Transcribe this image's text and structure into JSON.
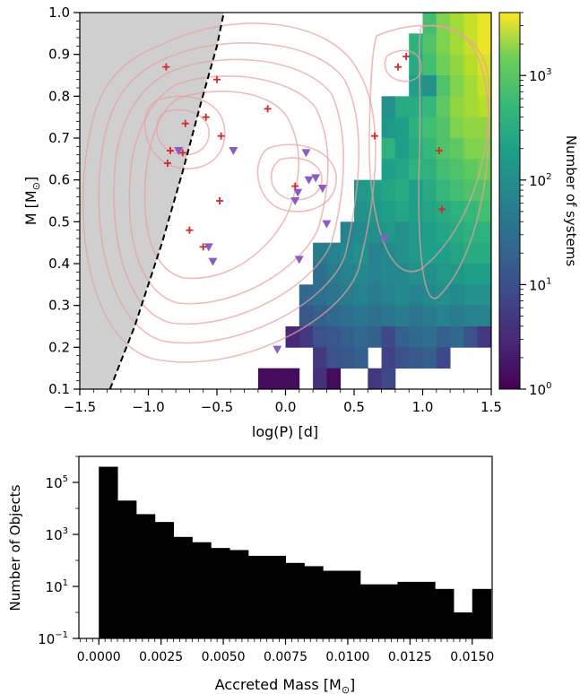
{
  "chart_data": [
    {
      "type": "heatmap",
      "xlabel": "log(P) [d]",
      "ylabel": "M [M",
      "ylabel_sub": "⊙",
      "ylabel_close": "]",
      "xlim": [
        -1.5,
        1.5
      ],
      "ylim": [
        0.1,
        1.0
      ],
      "xticks": [
        -1.5,
        -1.0,
        -0.5,
        0.0,
        0.5,
        1.0,
        1.5
      ],
      "xtick_labels": [
        "−1.5",
        "−1.0",
        "−0.5",
        "0.0",
        "0.5",
        "1.0",
        "1.5"
      ],
      "yticks": [
        0.1,
        0.2,
        0.3,
        0.4,
        0.5,
        0.6,
        0.7,
        0.8,
        0.9,
        1.0
      ],
      "ytick_labels": [
        "0.1",
        "0.2",
        "0.3",
        "0.4",
        "0.5",
        "0.6",
        "0.7",
        "0.8",
        "0.9",
        "1.0"
      ],
      "colorbar": {
        "label": "Number of systems",
        "scale": "log",
        "range": [
          1,
          4000
        ],
        "tick_values": [
          1,
          10,
          100,
          1000
        ],
        "tick_base": "10",
        "tick_exponents": [
          "0",
          "1",
          "2",
          "3"
        ]
      },
      "forbidden_region": {
        "boundary": [
          [
            -1.28,
            0.1
          ],
          [
            -1.1,
            0.25
          ],
          [
            -0.9,
            0.45
          ],
          [
            -0.75,
            0.62
          ],
          [
            -0.62,
            0.78
          ],
          [
            -0.5,
            0.92
          ],
          [
            -0.45,
            1.0
          ]
        ]
      },
      "heatmap_bins": {
        "x_edges_start": -1.5,
        "x_bin": 0.1,
        "y_edges_start": 0.1,
        "y_bin": 0.05,
        "rows": [
          {
            "y": 0.95,
            "x_from": 1.0,
            "log_counts": [
              2.5,
              2.9,
              3.1,
              3.3,
              3.5
            ]
          },
          {
            "y": 0.9,
            "x_from": 0.9,
            "log_counts": [
              2.3,
              2.6,
              2.9,
              3.1,
              3.3,
              3.5
            ]
          },
          {
            "y": 0.85,
            "x_from": 0.9,
            "log_counts": [
              2.2,
              2.5,
              2.8,
              3.0,
              3.2,
              3.4
            ]
          },
          {
            "y": 0.8,
            "x_from": 0.9,
            "log_counts": [
              2.0,
              1.8,
              2.6,
              2.9,
              3.1,
              3.3
            ]
          },
          {
            "y": 0.75,
            "x_from": 0.7,
            "log_counts": [
              1.8,
              2.2,
              2.2,
              2.4,
              2.7,
              3.0,
              3.1,
              3.2
            ]
          },
          {
            "y": 0.7,
            "x_from": 0.7,
            "log_counts": [
              1.9,
              2.0,
              2.3,
              2.5,
              2.6,
              2.9,
              3.0,
              3.0
            ]
          },
          {
            "y": 0.65,
            "x_from": 0.7,
            "log_counts": [
              2.3,
              2.0,
              2.2,
              2.4,
              2.6,
              2.7,
              2.9,
              2.9
            ]
          },
          {
            "y": 0.6,
            "x_from": 0.7,
            "log_counts": [
              2.0,
              2.1,
              2.3,
              2.3,
              2.5,
              2.6,
              2.7,
              2.8
            ]
          },
          {
            "y": 0.55,
            "x_from": 0.5,
            "log_counts": [
              1.9,
              2.0,
              2.1,
              2.2,
              2.0,
              2.2,
              2.4,
              2.5,
              2.6,
              2.6
            ]
          },
          {
            "y": 0.5,
            "x_from": 0.5,
            "log_counts": [
              1.8,
              1.9,
              2.0,
              2.1,
              2.0,
              2.1,
              2.2,
              2.3,
              2.4,
              2.5
            ]
          },
          {
            "y": 0.45,
            "x_from": 0.4,
            "log_counts": [
              1.6,
              1.7,
              1.8,
              1.9,
              1.8,
              1.9,
              2.0,
              2.1,
              2.2,
              2.3,
              2.3
            ]
          },
          {
            "y": 0.4,
            "x_from": 0.2,
            "log_counts": [
              1.5,
              1.6,
              1.7,
              1.8,
              1.6,
              1.7,
              1.8,
              1.9,
              2.0,
              2.0,
              2.1,
              2.2,
              2.2
            ]
          },
          {
            "y": 0.35,
            "x_from": 0.2,
            "log_counts": [
              1.3,
              1.5,
              1.6,
              1.7,
              1.6,
              1.7,
              1.7,
              1.8,
              1.8,
              1.9,
              1.9,
              2.0,
              2.0
            ]
          },
          {
            "y": 0.3,
            "x_from": 0.1,
            "log_counts": [
              1.2,
              1.3,
              1.4,
              1.5,
              1.6,
              1.5,
              1.6,
              1.7,
              1.6,
              1.7,
              1.8,
              1.7,
              1.8,
              1.8
            ]
          },
          {
            "y": 0.25,
            "x_from": 0.1,
            "log_counts": [
              1.0,
              1.1,
              1.2,
              1.3,
              1.4,
              1.3,
              1.4,
              1.5,
              1.4,
              1.5,
              1.6,
              1.5,
              1.6,
              1.6
            ]
          },
          {
            "y": 0.2,
            "x_from": 0.0,
            "log_counts": [
              0.4,
              0.6,
              0.9,
              1.0,
              1.1,
              1.2,
              1.1,
              0.8,
              1.1,
              1.2,
              1.3,
              1.1,
              1.2,
              0.9,
              0.6
            ]
          },
          {
            "y": 0.15,
            "x_from": 0.2,
            "log_counts": [
              0.6,
              0.9,
              1.0,
              1.1,
              null,
              0.7,
              0.9,
              1.0,
              1.1,
              0.8
            ]
          },
          {
            "y": 0.1,
            "x_from": -0.2,
            "log_counts": [
              0.1,
              0.1,
              0.1,
              null,
              0.5,
              0.1,
              null,
              null,
              0.6,
              0.8
            ]
          }
        ]
      },
      "series": [
        {
          "marker": "plus",
          "color": "#d62728",
          "points": [
            [
              -0.87,
              0.87
            ],
            [
              -0.5,
              0.84
            ],
            [
              -0.58,
              0.75
            ],
            [
              -0.73,
              0.735
            ],
            [
              -0.47,
              0.705
            ],
            [
              -0.84,
              0.67
            ],
            [
              -0.75,
              0.665
            ],
            [
              -0.86,
              0.64
            ],
            [
              -0.13,
              0.77
            ],
            [
              0.07,
              0.585
            ],
            [
              -0.48,
              0.55
            ],
            [
              -0.7,
              0.48
            ],
            [
              -0.6,
              0.44
            ],
            [
              0.65,
              0.705
            ],
            [
              0.82,
              0.87
            ],
            [
              0.88,
              0.895
            ],
            [
              1.12,
              0.67
            ],
            [
              1.14,
              0.53
            ]
          ]
        },
        {
          "marker": "triangle-down",
          "color": "#8b5cc6",
          "points": [
            [
              -0.78,
              0.67
            ],
            [
              -0.38,
              0.67
            ],
            [
              0.15,
              0.665
            ],
            [
              0.07,
              0.55
            ],
            [
              0.09,
              0.57
            ],
            [
              0.17,
              0.6
            ],
            [
              0.22,
              0.605
            ],
            [
              0.27,
              0.58
            ],
            [
              -0.56,
              0.44
            ],
            [
              -0.53,
              0.405
            ],
            [
              0.1,
              0.41
            ],
            [
              0.3,
              0.495
            ],
            [
              0.72,
              0.46
            ],
            [
              -0.06,
              0.195
            ]
          ]
        }
      ]
    },
    {
      "type": "bar",
      "xlabel": "Accreted Mass [M",
      "xlabel_sub": "⊙",
      "xlabel_close": "]",
      "ylabel": "Number of Objects",
      "xlim": [
        -0.0008,
        0.0158
      ],
      "yscale": "log",
      "ylim_exp": [
        -1,
        6
      ],
      "bin_start": 0.0,
      "bin_width": 0.00075,
      "values": [
        400000,
        20000,
        6000,
        3000,
        800,
        500,
        300,
        250,
        150,
        150,
        80,
        60,
        40,
        40,
        12,
        12,
        15,
        15,
        8,
        1,
        8
      ],
      "xticks": [
        0.0,
        0.0025,
        0.005,
        0.0075,
        0.01,
        0.0125,
        0.015
      ],
      "xtick_labels": [
        "0.0000",
        "0.0025",
        "0.0050",
        "0.0075",
        "0.0100",
        "0.0125",
        "0.0150"
      ],
      "ytick_exponents": [
        -1,
        1,
        3,
        5
      ],
      "ytick_exp_labels": [
        "−1",
        "1",
        "3",
        "5"
      ],
      "ytick_base": "10"
    }
  ]
}
